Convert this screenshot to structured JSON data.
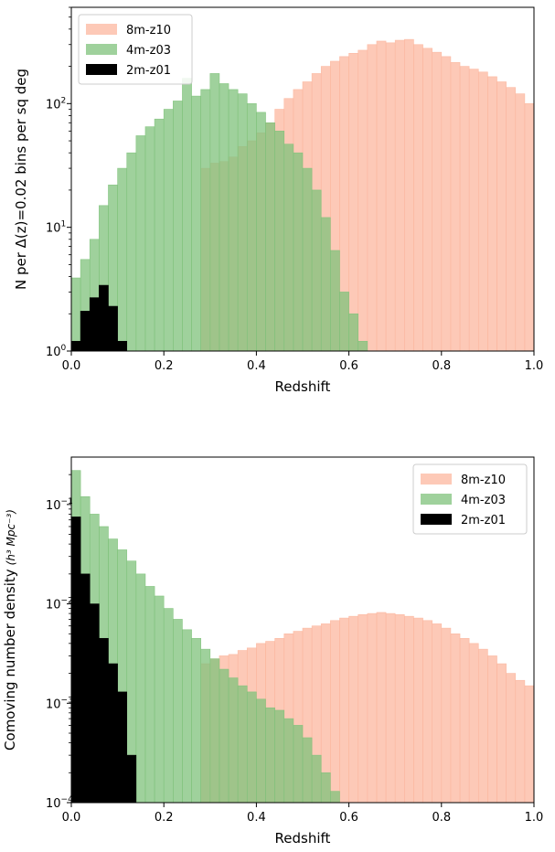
{
  "chart_data": [
    {
      "type": "bar",
      "xlabel": "Redshift",
      "ylabel": "N per Δ(z)=0.02 bins per sq deg",
      "yscale": "log",
      "xlim": [
        0.0,
        1.0
      ],
      "ylim": [
        1,
        600
      ],
      "x_ticks": [
        0.0,
        0.2,
        0.4,
        0.6,
        0.8,
        1.0
      ],
      "x_tick_labels": [
        "0.0",
        "0.2",
        "0.4",
        "0.6",
        "0.8",
        "1.0"
      ],
      "y_ticks": [
        1,
        10,
        100
      ],
      "y_tick_labels": [
        "10",
        "10",
        "10"
      ],
      "y_tick_exponents": [
        "0",
        "1",
        "2"
      ],
      "bin_width": 0.02,
      "grid": false,
      "legend_position": "top-left",
      "series": [
        {
          "name": "8m-z10",
          "color": "#fcb79f",
          "bin_start": 0.28,
          "values": [
            30,
            33,
            34,
            37,
            45,
            50,
            58,
            70,
            90,
            110,
            130,
            150,
            175,
            200,
            220,
            240,
            255,
            270,
            300,
            320,
            310,
            325,
            330,
            300,
            280,
            260,
            240,
            215,
            200,
            190,
            180,
            165,
            150,
            135,
            120,
            100
          ]
        },
        {
          "name": "4m-z03",
          "color": "#7fc27b",
          "bin_start": 0.0,
          "values": [
            3.9,
            5.5,
            8,
            15,
            22,
            30,
            40,
            55,
            65,
            75,
            90,
            105,
            160,
            115,
            130,
            175,
            145,
            130,
            120,
            100,
            85,
            70,
            60,
            47,
            40,
            30,
            20,
            12,
            6.5,
            3.0,
            2.0,
            1.2,
            1.0
          ]
        },
        {
          "name": "2m-z01",
          "color": "#000000",
          "bin_start": 0.0,
          "values": [
            1.2,
            2.1,
            2.7,
            3.4,
            2.3,
            1.2,
            1.0
          ]
        }
      ]
    },
    {
      "type": "bar",
      "xlabel": "Redshift",
      "ylabel": "Comoving number density",
      "ylabel_units": "(h³ Mpc⁻³)",
      "yscale": "log",
      "xlim": [
        0.0,
        1.0
      ],
      "ylim": [
        0.0001,
        0.3
      ],
      "x_ticks": [
        0.0,
        0.2,
        0.4,
        0.6,
        0.8,
        1.0
      ],
      "x_tick_labels": [
        "0.0",
        "0.2",
        "0.4",
        "0.6",
        "0.8",
        "1.0"
      ],
      "y_ticks": [
        0.0001,
        0.001,
        0.01,
        0.1
      ],
      "y_tick_labels": [
        "10",
        "10",
        "10",
        "10"
      ],
      "y_tick_exponents": [
        "−4",
        "−3",
        "−2",
        "−1"
      ],
      "bin_width": 0.02,
      "grid": false,
      "legend_position": "top-right",
      "series": [
        {
          "name": "8m-z10",
          "color": "#fcb79f",
          "bin_start": 0.28,
          "values": [
            0.0025,
            0.0028,
            0.003,
            0.0031,
            0.0034,
            0.0036,
            0.004,
            0.0042,
            0.0045,
            0.005,
            0.0053,
            0.0057,
            0.006,
            0.0063,
            0.0068,
            0.0072,
            0.0075,
            0.0078,
            0.008,
            0.0082,
            0.008,
            0.0078,
            0.0075,
            0.0072,
            0.0068,
            0.0063,
            0.0057,
            0.005,
            0.0045,
            0.004,
            0.0035,
            0.003,
            0.0025,
            0.002,
            0.0017,
            0.0015,
            0.0014
          ]
        },
        {
          "name": "4m-z03",
          "color": "#7fc27b",
          "bin_start": 0.0,
          "values": [
            0.22,
            0.12,
            0.08,
            0.06,
            0.045,
            0.035,
            0.027,
            0.02,
            0.015,
            0.012,
            0.009,
            0.007,
            0.0055,
            0.0045,
            0.0035,
            0.0028,
            0.0022,
            0.0018,
            0.0015,
            0.0013,
            0.0011,
            0.0009,
            0.00085,
            0.0007,
            0.0006,
            0.00045,
            0.0003,
            0.0002,
            0.00013,
            0.0001
          ]
        },
        {
          "name": "2m-z01",
          "color": "#000000",
          "bin_start": 0.0,
          "values": [
            0.075,
            0.02,
            0.01,
            0.0045,
            0.0025,
            0.0013,
            0.0003,
            0.0001
          ]
        }
      ]
    }
  ]
}
